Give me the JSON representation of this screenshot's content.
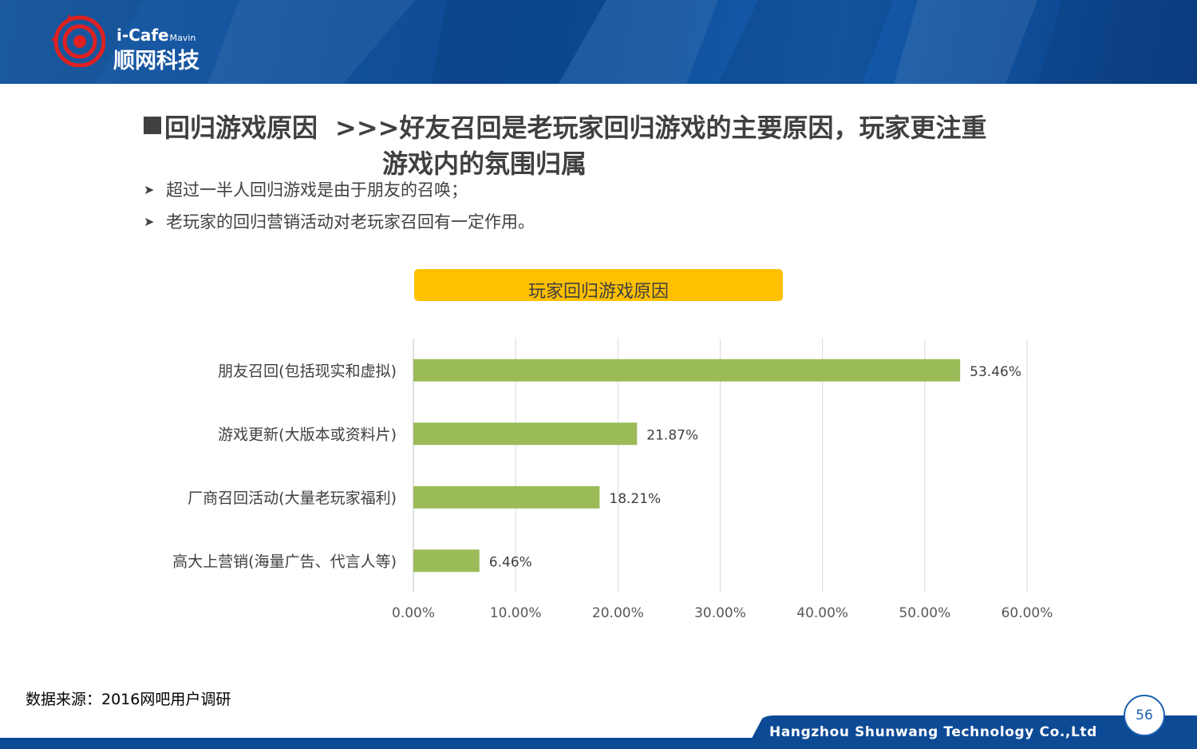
{
  "header": {
    "brand_latin": "i-Cafe",
    "brand_sub": "Mavin",
    "brand_cn": "顺网科技"
  },
  "title": {
    "topic": "回归游戏原因",
    "headline_line1": ">>>好友召回是老玩家回归游戏的主要原因，玩家更注重",
    "headline_line2": "游戏内的氛围归属"
  },
  "bullets": [
    "超过一半人回归游戏是由于朋友的召唤；",
    "老玩家的回归营销活动对老玩家召回有一定作用。"
  ],
  "chart_data": {
    "type": "bar",
    "orientation": "horizontal",
    "title": "玩家回归游戏原因",
    "categories": [
      "朋友召回(包括现实和虚拟)",
      "游戏更新(大版本或资料片)",
      "厂商召回活动(大量老玩家福利)",
      "高大上营销(海量广告、代言人等)"
    ],
    "values": [
      53.46,
      21.87,
      18.21,
      6.46
    ],
    "value_labels": [
      "53.46%",
      "21.87%",
      "18.21%",
      "6.46%"
    ],
    "xlim": [
      0,
      60
    ],
    "xticks": [
      "0.00%",
      "10.00%",
      "20.00%",
      "30.00%",
      "40.00%",
      "50.00%",
      "60.00%"
    ],
    "bar_color": "#9bbb59",
    "grid": true,
    "legend": "none"
  },
  "footer": {
    "source": "数据来源：2016网吧用户调研",
    "company": "Hangzhou Shunwang Technology Co.,Ltd",
    "page_number": "56"
  },
  "colors": {
    "header_blue": "#0d4a96",
    "accent_yellow": "#ffc000",
    "logo_red": "#e02020",
    "footer_blue": "#1a5fb4"
  }
}
